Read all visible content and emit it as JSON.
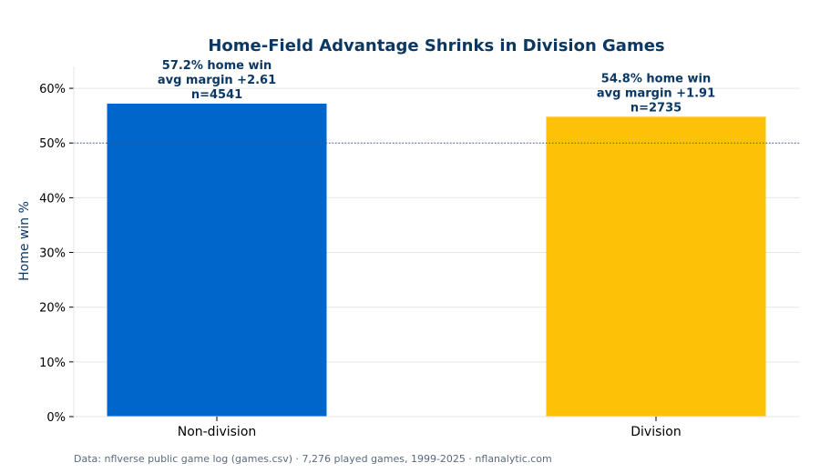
{
  "colors": {
    "title": "#0b3763",
    "label_text": "#0b3763",
    "grid": "#e6e6e6",
    "axis": "#000000",
    "reference_line": "#3d5a80",
    "footer": "#5a6a7e"
  },
  "footer": "Data: nflverse public game log (games.csv) · 7,276 played games, 1999-2025 · nflanalytic.com",
  "chart_data": {
    "type": "bar",
    "title": "Home-Field Advantage Shrinks in Division Games",
    "xlabel": "",
    "ylabel": "Home win %",
    "ylim": [
      0,
      0.64
    ],
    "yticks": [
      0,
      0.1,
      0.2,
      0.3,
      0.4,
      0.5,
      0.6
    ],
    "ytick_labels": [
      "0%",
      "10%",
      "20%",
      "30%",
      "40%",
      "50%",
      "60%"
    ],
    "grid": "y",
    "reference_line": 0.5,
    "categories": [
      "Non-division",
      "Division"
    ],
    "values": [
      0.572,
      0.548
    ],
    "colors": [
      "#0066cc",
      "#fdc107"
    ],
    "annotations": [
      [
        "57.2% home win",
        "avg margin +2.61",
        "n=4541"
      ],
      [
        "54.8% home win",
        "avg margin +1.91",
        "n=2735"
      ]
    ]
  }
}
